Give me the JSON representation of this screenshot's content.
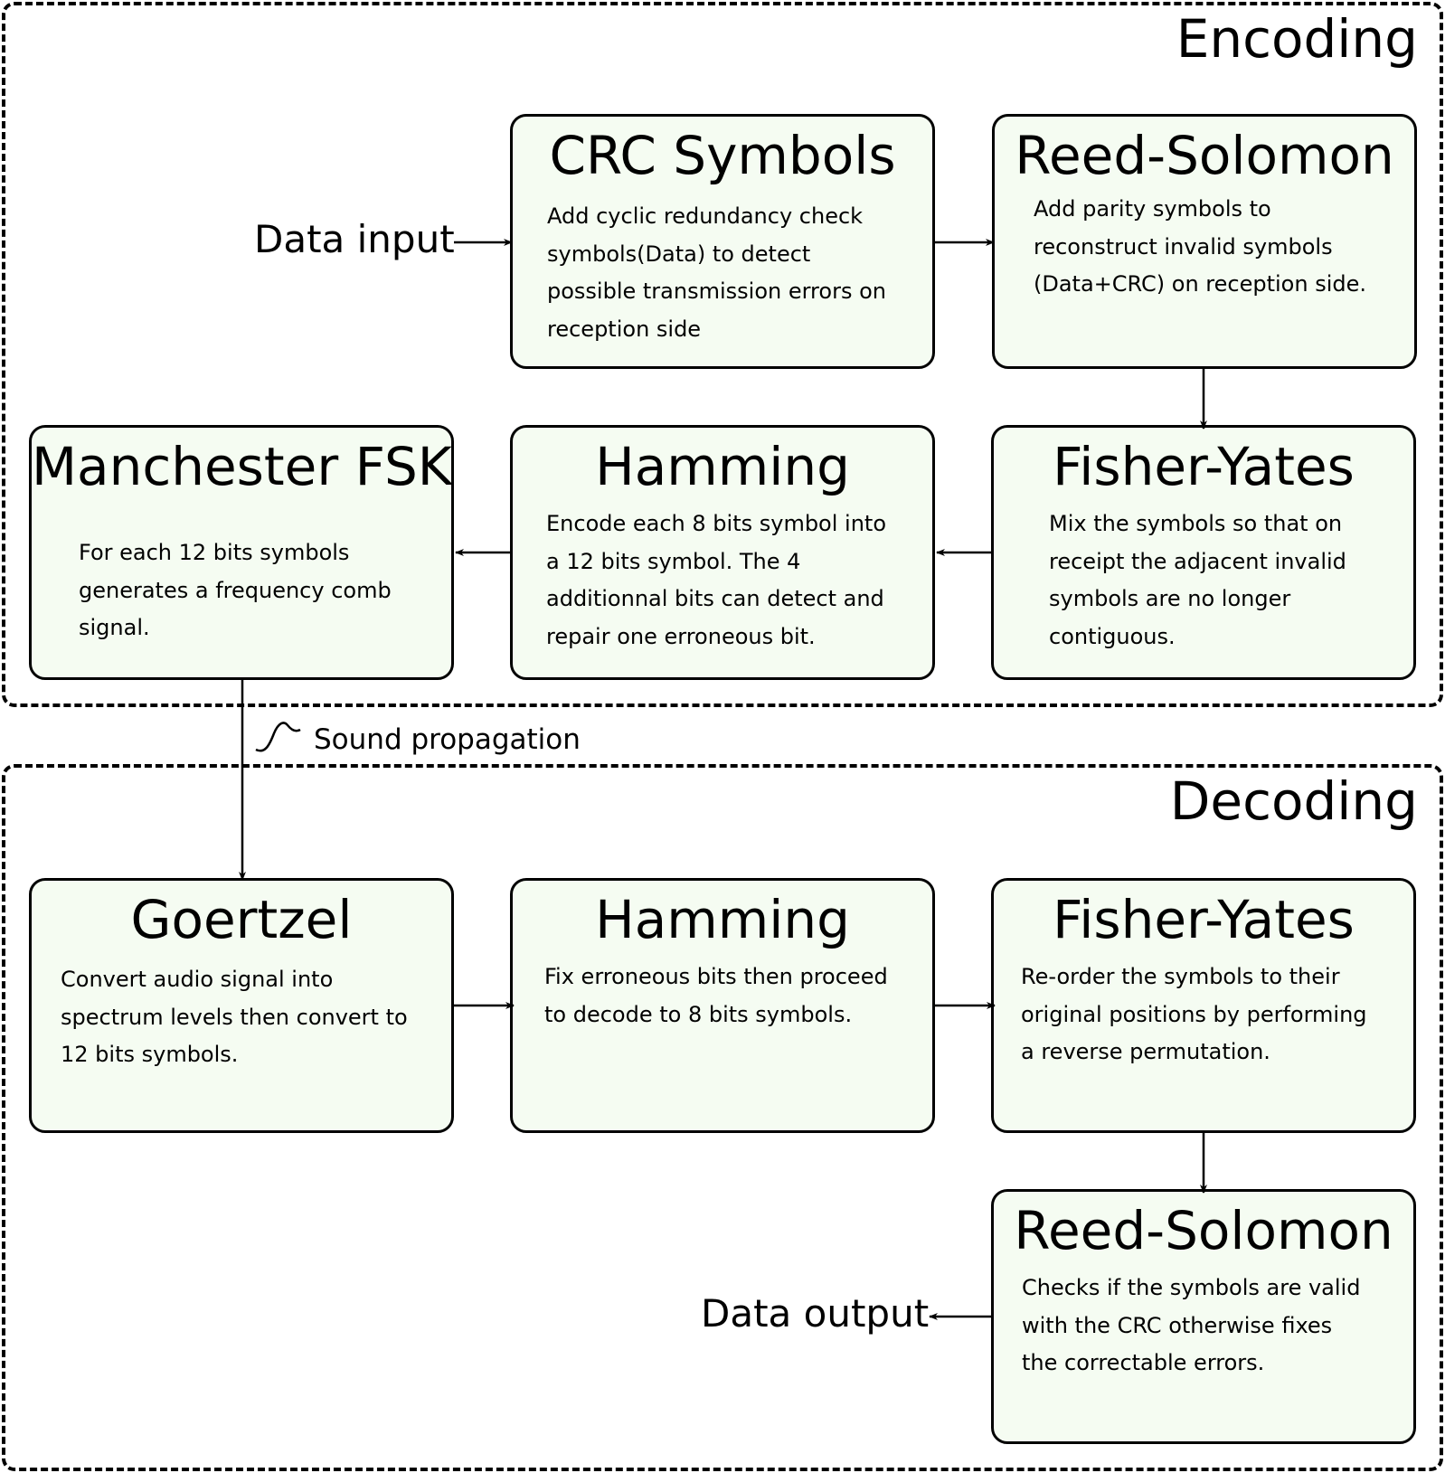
{
  "encoding": {
    "title": "Encoding",
    "crc": {
      "title": "CRC Symbols",
      "lines": [
        "Add cyclic redundancy check",
        "symbols(Data) to detect",
        "possible transmission errors on",
        "reception side"
      ]
    },
    "reed_solomon": {
      "title": "Reed-Solomon",
      "lines": [
        "Add parity symbols to",
        "reconstruct invalid symbols",
        "(Data+CRC) on reception side."
      ]
    },
    "fisher_yates": {
      "title": "Fisher-Yates",
      "lines": [
        "Mix the symbols so that on",
        "receipt the adjacent invalid",
        "symbols are no longer",
        "contiguous."
      ]
    },
    "hamming": {
      "title": "Hamming",
      "lines": [
        "Encode each 8 bits symbol into",
        "a 12 bits symbol. The 4",
        "additionnal bits can detect and",
        "repair one erroneous bit."
      ]
    },
    "manchester": {
      "title": "Manchester FSK",
      "lines": [
        "For each 12 bits symbols",
        "generates a frequency comb",
        "signal."
      ]
    }
  },
  "data_input": "Data input",
  "sound_propagation": "Sound propagation",
  "decoding": {
    "title": "Decoding",
    "goertzel": {
      "title": "Goertzel",
      "lines": [
        "Convert audio signal into",
        "spectrum levels then convert to",
        "12 bits symbols."
      ]
    },
    "hamming": {
      "title": "Hamming",
      "lines": [
        "Fix erroneous bits then proceed",
        "to decode to 8 bits symbols."
      ]
    },
    "fisher_yates": {
      "title": "Fisher-Yates",
      "lines": [
        "Re-order the symbols to their",
        "original positions by performing",
        "a reverse permutation."
      ]
    },
    "reed_solomon": {
      "title": "Reed-Solomon",
      "lines": [
        "Checks if the symbols are valid",
        "with the CRC otherwise fixes",
        "the correctable errors."
      ]
    }
  },
  "data_output": "Data output"
}
